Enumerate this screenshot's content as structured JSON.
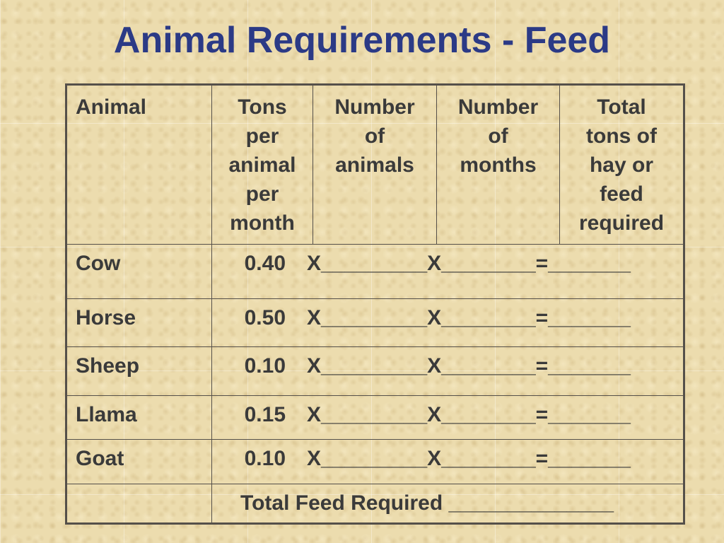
{
  "title": "Animal Requirements - Feed",
  "table": {
    "headers": {
      "animal": "Animal",
      "tons_per_animal": [
        "Tons",
        "per",
        "animal",
        "per",
        "month"
      ],
      "num_animals": [
        "Number",
        "of",
        "animals"
      ],
      "num_months": [
        "Number",
        "of",
        "months"
      ],
      "total_tons": [
        "Total",
        "tons of",
        "hay or",
        "feed",
        "required"
      ]
    },
    "rows": [
      {
        "animal": "Cow",
        "rate": "0.40",
        "formula": "X_________X________=_______"
      },
      {
        "animal": "Horse",
        "rate": "0.50",
        "formula": "X_________X________=_______"
      },
      {
        "animal": "Sheep",
        "rate": "0.10",
        "formula": "X_________X________=_______"
      },
      {
        "animal": "Llama",
        "rate": "0.15",
        "formula": "X_________X________=_______"
      },
      {
        "animal": "Goat",
        "rate": "0.10",
        "formula": "X_________X________=_______"
      }
    ],
    "total_label": "Total Feed Required ______________"
  },
  "colors": {
    "title": "#2b3a86",
    "text": "#3a3a3a",
    "border": "#55504a",
    "background": "#ecdcae"
  }
}
